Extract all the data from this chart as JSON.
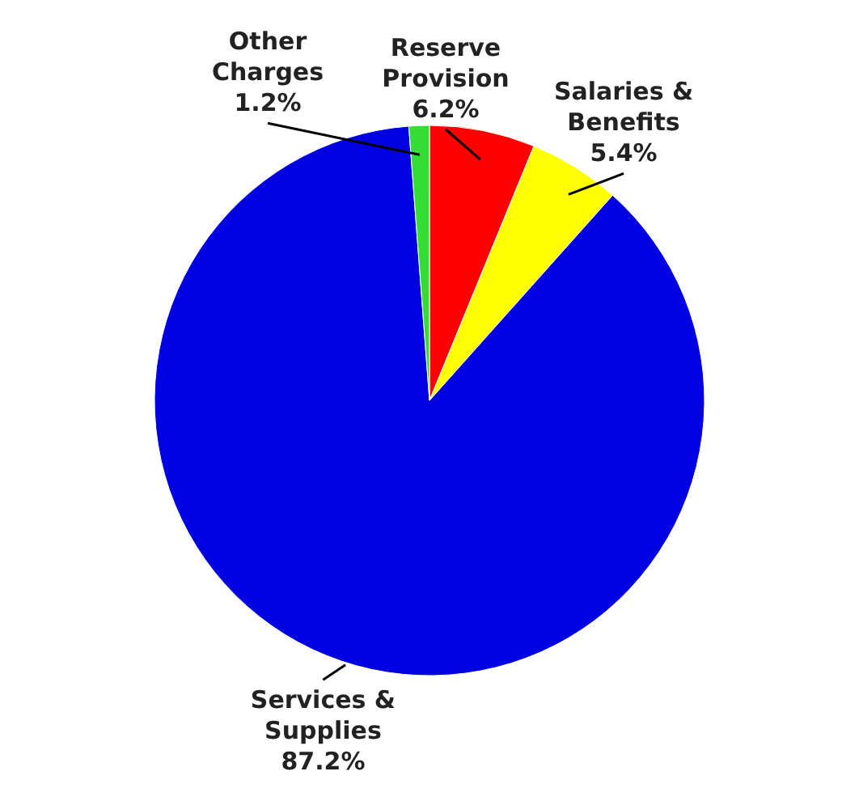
{
  "chart_data": {
    "type": "pie",
    "categories": [
      "Reserve Provision",
      "Salaries & Benefits",
      "Services & Supplies",
      "Other Charges"
    ],
    "values": [
      6.2,
      5.4,
      87.2,
      1.2
    ],
    "colors": [
      "#ff0000",
      "#ffff00",
      "#0000e0",
      "#33dd33"
    ],
    "value_labels": [
      "6.2%",
      "5.4%",
      "87.2%",
      "1.2%"
    ]
  }
}
